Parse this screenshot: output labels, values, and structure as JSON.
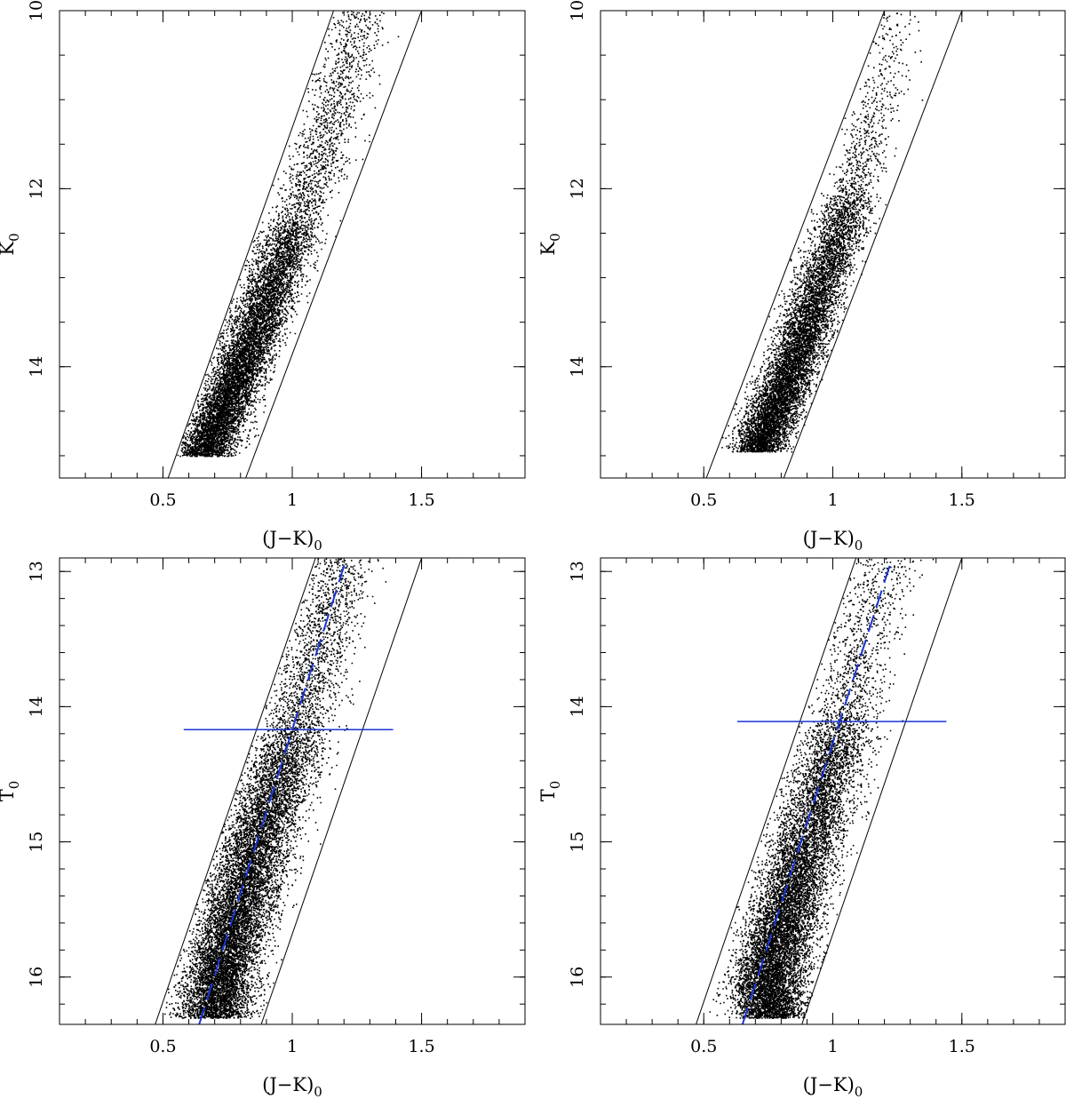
{
  "chart_data": [
    {
      "type": "scatter",
      "panel": "top-left",
      "xlabel": "(J−K)",
      "xlabel_sub": "0",
      "ylabel": "K",
      "ylabel_sub": "0",
      "xlim": [
        0.1,
        1.9
      ],
      "ylim": [
        15.25,
        10.0
      ],
      "y_inverted": true,
      "x_ticks": [
        0.5,
        1,
        1.5
      ],
      "x_tick_labels": [
        "0.5",
        "1",
        "1.5"
      ],
      "y_ticks": [
        10,
        12,
        14
      ],
      "y_tick_labels": [
        "10",
        "12",
        "14"
      ],
      "grid": false,
      "boundary_lines": [
        {
          "x": [
            0.52,
            1.16
          ],
          "y": [
            15.25,
            10.0
          ]
        },
        {
          "x": [
            0.82,
            1.5
          ],
          "y": [
            15.25,
            10.0
          ]
        }
      ],
      "point_density": {
        "faint_limit": 15.0,
        "ridge": [
          {
            "y": 15.0,
            "x": 0.66
          },
          {
            "y": 14.0,
            "x": 0.8
          },
          {
            "y": 13.0,
            "x": 0.93
          },
          {
            "y": 12.0,
            "x": 1.06
          },
          {
            "y": 11.0,
            "x": 1.17
          },
          {
            "y": 10.0,
            "x": 1.27
          }
        ],
        "count_per_mag": [
          {
            "y": 15.0,
            "n": 4200
          },
          {
            "y": 14.0,
            "n": 3400
          },
          {
            "y": 13.0,
            "n": 2300
          },
          {
            "y": 12.5,
            "n": 1700
          },
          {
            "y": 12.3,
            "n": 700
          },
          {
            "y": 11.0,
            "n": 500
          },
          {
            "y": 10.0,
            "n": 380
          }
        ]
      }
    },
    {
      "type": "scatter",
      "panel": "top-right",
      "xlabel": "(J−K)",
      "xlabel_sub": "0",
      "ylabel": "K",
      "ylabel_sub": "0",
      "xlim": [
        0.1,
        1.9
      ],
      "ylim": [
        15.25,
        10.0
      ],
      "y_inverted": true,
      "x_ticks": [
        0.5,
        1,
        1.5
      ],
      "x_tick_labels": [
        "0.5",
        "1",
        "1.5"
      ],
      "y_ticks": [
        10,
        12,
        14
      ],
      "y_tick_labels": [
        "10",
        "12",
        "14"
      ],
      "grid": false,
      "boundary_lines": [
        {
          "x": [
            0.51,
            1.2
          ],
          "y": [
            15.25,
            10.0
          ]
        },
        {
          "x": [
            0.81,
            1.5
          ],
          "y": [
            15.25,
            10.0
          ]
        }
      ],
      "point_density": {
        "faint_limit": 14.95,
        "ridge": [
          {
            "y": 15.0,
            "x": 0.7
          },
          {
            "y": 14.0,
            "x": 0.84
          },
          {
            "y": 13.0,
            "x": 0.96
          },
          {
            "y": 12.0,
            "x": 1.08
          },
          {
            "y": 11.0,
            "x": 1.17
          },
          {
            "y": 10.5,
            "x": 1.23
          }
        ],
        "count_per_mag": [
          {
            "y": 15.0,
            "n": 4400
          },
          {
            "y": 14.0,
            "n": 3200
          },
          {
            "y": 13.0,
            "n": 2000
          },
          {
            "y": 12.2,
            "n": 1400
          },
          {
            "y": 12.0,
            "n": 500
          },
          {
            "y": 11.0,
            "n": 240
          },
          {
            "y": 10.5,
            "n": 120
          }
        ]
      }
    },
    {
      "type": "scatter",
      "panel": "bottom-left",
      "xlabel": "(J−K)",
      "xlabel_sub": "0",
      "ylabel": "T",
      "ylabel_sub": "0",
      "xlim": [
        0.1,
        1.9
      ],
      "ylim": [
        16.35,
        12.9
      ],
      "y_inverted": true,
      "x_ticks": [
        0.5,
        1,
        1.5
      ],
      "x_tick_labels": [
        "0.5",
        "1",
        "1.5"
      ],
      "y_ticks": [
        13,
        14,
        15,
        16
      ],
      "y_tick_labels": [
        "13",
        "14",
        "15",
        "16"
      ],
      "grid": false,
      "boundary_lines": [
        {
          "x": [
            0.47,
            1.09
          ],
          "y": [
            16.35,
            12.9
          ]
        },
        {
          "x": [
            0.88,
            1.5
          ],
          "y": [
            16.35,
            12.9
          ]
        }
      ],
      "trend_line": {
        "style": "dashed",
        "color": "#1a35d6",
        "x": [
          0.64,
          1.21
        ],
        "y": [
          16.35,
          12.9
        ]
      },
      "tip_line": {
        "color": "#1a35d6",
        "y": 14.17,
        "x": [
          0.58,
          1.39
        ]
      },
      "point_density": {
        "faint_limit": 16.3,
        "ridge": [
          {
            "y": 16.3,
            "x": 0.7
          },
          {
            "y": 16.0,
            "x": 0.72
          },
          {
            "y": 15.0,
            "x": 0.86
          },
          {
            "y": 14.2,
            "x": 1.0
          },
          {
            "y": 13.0,
            "x": 1.18
          }
        ],
        "count_per_mag": [
          {
            "y": 16.2,
            "n": 6500
          },
          {
            "y": 15.5,
            "n": 5200
          },
          {
            "y": 15.0,
            "n": 4200
          },
          {
            "y": 14.4,
            "n": 3000
          },
          {
            "y": 14.1,
            "n": 1400
          },
          {
            "y": 13.5,
            "n": 1100
          },
          {
            "y": 13.0,
            "n": 900
          }
        ]
      }
    },
    {
      "type": "scatter",
      "panel": "bottom-right",
      "xlabel": "(J−K)",
      "xlabel_sub": "0",
      "ylabel": "T",
      "ylabel_sub": "0",
      "xlim": [
        0.1,
        1.9
      ],
      "ylim": [
        16.35,
        12.9
      ],
      "y_inverted": true,
      "x_ticks": [
        0.5,
        1,
        1.5
      ],
      "x_tick_labels": [
        "0.5",
        "1",
        "1.5"
      ],
      "y_ticks": [
        13,
        14,
        15,
        16
      ],
      "y_tick_labels": [
        "13",
        "14",
        "15",
        "16"
      ],
      "grid": false,
      "boundary_lines": [
        {
          "x": [
            0.47,
            1.09
          ],
          "y": [
            16.35,
            12.9
          ]
        },
        {
          "x": [
            0.88,
            1.5
          ],
          "y": [
            16.35,
            12.9
          ]
        }
      ],
      "trend_line": {
        "style": "dashed",
        "color": "#1a35d6",
        "x": [
          0.65,
          1.23
        ],
        "y": [
          16.35,
          12.9
        ]
      },
      "tip_line": {
        "color": "#1a35d6",
        "y": 14.11,
        "x": [
          0.63,
          1.44
        ]
      },
      "point_density": {
        "faint_limit": 16.3,
        "ridge": [
          {
            "y": 16.3,
            "x": 0.76
          },
          {
            "y": 16.0,
            "x": 0.75
          },
          {
            "y": 15.0,
            "x": 0.89
          },
          {
            "y": 14.1,
            "x": 1.04
          },
          {
            "y": 13.0,
            "x": 1.18
          }
        ],
        "count_per_mag": [
          {
            "y": 16.2,
            "n": 7000
          },
          {
            "y": 15.5,
            "n": 5000
          },
          {
            "y": 15.0,
            "n": 3500
          },
          {
            "y": 14.3,
            "n": 2500
          },
          {
            "y": 14.0,
            "n": 900
          },
          {
            "y": 13.5,
            "n": 650
          },
          {
            "y": 13.0,
            "n": 500
          }
        ]
      }
    }
  ]
}
